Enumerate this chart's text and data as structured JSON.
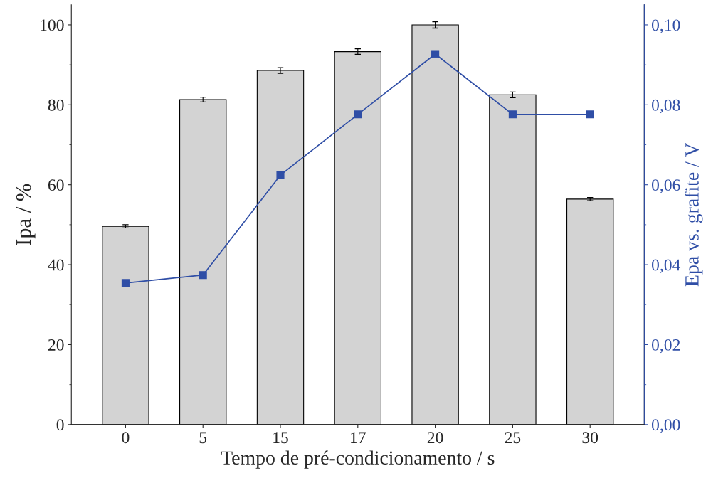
{
  "chart_data": {
    "type": "bar",
    "xlabel": "Tempo de pré-condicionamento / s",
    "ylabel": "Ipa / %",
    "y2label": "Epa vs. grafite / V",
    "categories": [
      "0",
      "5",
      "15",
      "17",
      "20",
      "25",
      "30"
    ],
    "series": [
      {
        "color": "#d3d3d3",
        "values": [
          49.6,
          81.3,
          88.6,
          93.3,
          100,
          82.5,
          56.4
        ],
        "errors": [
          0.4,
          0.6,
          0.7,
          0.7,
          0.8,
          0.7,
          0.4
        ]
      },
      {
        "type": "line",
        "axis": "y2",
        "color": "#2f4ea6",
        "marker": "square",
        "line_style": "solid",
        "values": [
          0.0354,
          0.0374,
          0.0624,
          0.0776,
          0.0927,
          0.0776,
          0.0776
        ]
      }
    ],
    "ylim": [
      0,
      105
    ],
    "yticks": [
      0,
      20,
      40,
      60,
      80,
      100
    ],
    "y2lim": [
      0,
      0.105
    ],
    "y2ticks": [
      {
        "value": 0,
        "label": "0,00"
      },
      {
        "value": 0.02,
        "label": "0,02"
      },
      {
        "value": 0.04,
        "label": "0,04"
      },
      {
        "value": 0.06,
        "label": "0,06"
      },
      {
        "value": 0.08,
        "label": "0,08"
      },
      {
        "value": 0.1,
        "label": "0,10"
      }
    ],
    "grid": false,
    "legend": false
  }
}
